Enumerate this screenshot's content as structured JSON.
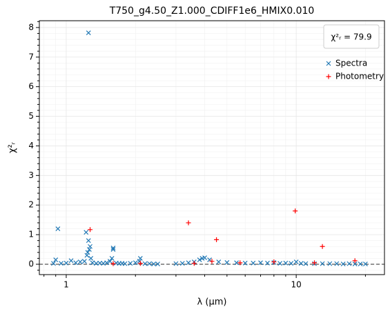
{
  "chart_data": {
    "type": "scatter",
    "title": "T750_g4.50_Z1.000_CDIFF1e6_HMIX0.010",
    "x_label": "λ (μm)",
    "y_label": "χ²ᵣ",
    "annotation": "χ²ᵣ = 79.9",
    "xscale": "log",
    "grid": true,
    "legend": "upper right",
    "xlim": [
      0.764,
      24.2
    ],
    "ylim": [
      -0.35,
      8.23
    ],
    "xticks": [
      1,
      10
    ],
    "yticks": [
      0,
      1,
      2,
      3,
      4,
      5,
      6,
      7,
      8
    ],
    "xminorticks": [
      0.8,
      0.9,
      2,
      3,
      4,
      5,
      6,
      7,
      8,
      9,
      20
    ],
    "yminorticks": [
      -0.2,
      0.2,
      0.4,
      0.6,
      0.8,
      1.2,
      1.4,
      1.6,
      1.8,
      2.2,
      2.4,
      2.6,
      2.8,
      3.2,
      3.4,
      3.6,
      3.8,
      4.2,
      4.4,
      4.6,
      4.8,
      5.2,
      5.4,
      5.6,
      5.8,
      6.2,
      6.4,
      6.6,
      6.8,
      7.2,
      7.4,
      7.6,
      7.8,
      8.2
    ],
    "hline": 0,
    "series": [
      {
        "name": "Spectra",
        "color": "#1f77b4",
        "marker": "x",
        "x": [
          0.88,
          0.9,
          0.92,
          0.95,
          1.0,
          1.05,
          1.1,
          1.15,
          1.2,
          1.22,
          1.23,
          1.24,
          1.25,
          1.25,
          1.26,
          1.27,
          1.28,
          1.3,
          1.35,
          1.4,
          1.45,
          1.5,
          1.55,
          1.58,
          1.6,
          1.6,
          1.65,
          1.7,
          1.75,
          1.8,
          1.9,
          2.0,
          2.08,
          2.1,
          2.2,
          2.3,
          2.4,
          2.5,
          3.0,
          3.2,
          3.4,
          3.6,
          3.8,
          3.9,
          4.0,
          4.2,
          4.6,
          5.0,
          5.5,
          6.0,
          6.5,
          7.0,
          7.5,
          8.0,
          8.5,
          9.0,
          9.5,
          10.0,
          10.5,
          11,
          12,
          13,
          14,
          15,
          16,
          17,
          18,
          19,
          20
        ],
        "values": [
          0.03,
          0.15,
          1.2,
          0.03,
          0.04,
          0.12,
          0.05,
          0.08,
          0.1,
          1.08,
          0.3,
          0.4,
          7.82,
          0.8,
          0.5,
          0.6,
          0.2,
          0.05,
          0.03,
          0.04,
          0.03,
          0.05,
          0.1,
          0.2,
          0.5,
          0.55,
          0.04,
          0.03,
          0.03,
          0.02,
          0.03,
          0.05,
          0.1,
          0.2,
          0.02,
          0.02,
          0.01,
          0.01,
          0.02,
          0.03,
          0.05,
          0.08,
          0.15,
          0.2,
          0.22,
          0.15,
          0.08,
          0.06,
          0.05,
          0.04,
          0.04,
          0.05,
          0.04,
          0.06,
          0.03,
          0.04,
          0.03,
          0.08,
          0.03,
          0.02,
          0.02,
          0.02,
          0.02,
          0.02,
          0.01,
          0.02,
          0.01,
          0.01,
          0.01
        ]
      },
      {
        "name": "Photometry",
        "color": "#ff0000",
        "marker": "+",
        "x": [
          1.27,
          1.6,
          2.1,
          3.4,
          3.6,
          4.3,
          4.5,
          5.7,
          8.0,
          9.9,
          12,
          13,
          18
        ],
        "values": [
          1.17,
          0.02,
          0.03,
          1.4,
          0.03,
          0.1,
          0.83,
          0.05,
          0.08,
          1.8,
          0.05,
          0.6,
          0.12
        ]
      }
    ]
  }
}
